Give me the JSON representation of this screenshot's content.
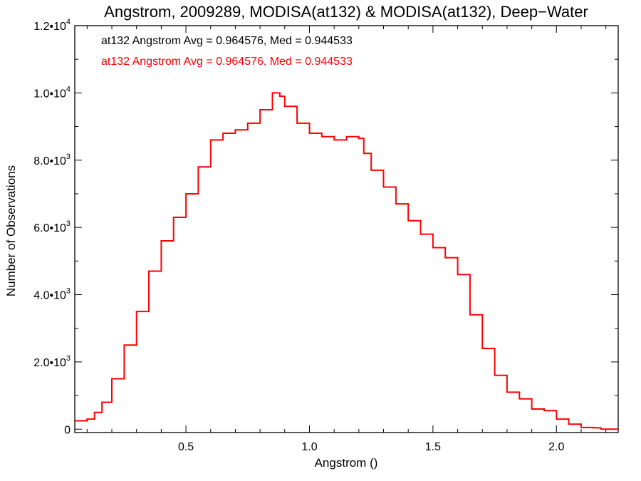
{
  "chart_data": {
    "type": "line",
    "style": "step",
    "title": "Angstrom, 2009289, MODISA(at132) & MODISA(at132), Deep−Water",
    "xlabel": "Angstrom ()",
    "ylabel": "Number of Observations",
    "xlim": [
      0.05,
      2.25
    ],
    "ylim": [
      -100,
      12000
    ],
    "x_ticks": [
      {
        "value": 0.5,
        "label": "0.5"
      },
      {
        "value": 1.0,
        "label": "1.0"
      },
      {
        "value": 1.5,
        "label": "1.5"
      },
      {
        "value": 2.0,
        "label": "2.0"
      }
    ],
    "y_ticks": [
      {
        "value": 0,
        "mantissa": "0",
        "exponent": ""
      },
      {
        "value": 2000,
        "mantissa": "2.0•10",
        "exponent": "3"
      },
      {
        "value": 4000,
        "mantissa": "4.0•10",
        "exponent": "3"
      },
      {
        "value": 6000,
        "mantissa": "6.0•10",
        "exponent": "3"
      },
      {
        "value": 8000,
        "mantissa": "8.0•10",
        "exponent": "3"
      },
      {
        "value": 10000,
        "mantissa": "1.0•10",
        "exponent": "4"
      },
      {
        "value": 12000,
        "mantissa": "1.2•10",
        "exponent": "4"
      }
    ],
    "grid": false,
    "legend": [
      {
        "text": "at132 Angstrom Avg = 0.964576, Med = 0.944533",
        "color": "#000000"
      },
      {
        "text": "at132 Angstrom Avg = 0.964576, Med = 0.944533",
        "color": "#ff0000"
      }
    ],
    "series": [
      {
        "color": "#ff0000",
        "points": [
          [
            0.05,
            250
          ],
          [
            0.1,
            300
          ],
          [
            0.13,
            500
          ],
          [
            0.16,
            800
          ],
          [
            0.2,
            1500
          ],
          [
            0.25,
            2500
          ],
          [
            0.3,
            3500
          ],
          [
            0.35,
            4700
          ],
          [
            0.4,
            5600
          ],
          [
            0.45,
            6300
          ],
          [
            0.5,
            7000
          ],
          [
            0.55,
            7800
          ],
          [
            0.6,
            8600
          ],
          [
            0.65,
            8800
          ],
          [
            0.7,
            8900
          ],
          [
            0.75,
            9100
          ],
          [
            0.8,
            9500
          ],
          [
            0.85,
            10000
          ],
          [
            0.88,
            9900
          ],
          [
            0.9,
            9600
          ],
          [
            0.95,
            9100
          ],
          [
            1.0,
            8800
          ],
          [
            1.05,
            8700
          ],
          [
            1.1,
            8600
          ],
          [
            1.15,
            8700
          ],
          [
            1.2,
            8650
          ],
          [
            1.22,
            8200
          ],
          [
            1.25,
            7700
          ],
          [
            1.3,
            7200
          ],
          [
            1.35,
            6700
          ],
          [
            1.4,
            6200
          ],
          [
            1.45,
            5800
          ],
          [
            1.5,
            5400
          ],
          [
            1.55,
            5100
          ],
          [
            1.6,
            4600
          ],
          [
            1.65,
            3400
          ],
          [
            1.7,
            2400
          ],
          [
            1.75,
            1600
          ],
          [
            1.8,
            1100
          ],
          [
            1.85,
            900
          ],
          [
            1.9,
            600
          ],
          [
            1.95,
            550
          ],
          [
            2.0,
            300
          ],
          [
            2.05,
            150
          ],
          [
            2.1,
            50
          ],
          [
            2.15,
            40
          ],
          [
            2.18,
            0
          ],
          [
            2.25,
            0
          ]
        ]
      }
    ]
  }
}
